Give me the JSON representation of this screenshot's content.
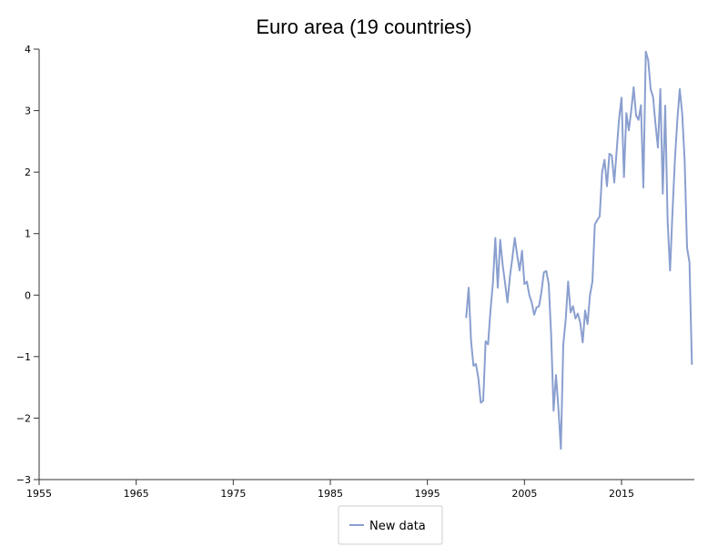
{
  "chart_data": {
    "type": "line",
    "title": "Euro area (19 countries)",
    "xlabel": "",
    "ylabel": "",
    "xlim": [
      1955,
      2022.5
    ],
    "ylim": [
      -3,
      4
    ],
    "x_ticks": [
      1955,
      1965,
      1975,
      1985,
      1995,
      2005,
      2015
    ],
    "y_ticks": [
      -3,
      -2,
      -1,
      0,
      1,
      2,
      3,
      4
    ],
    "grid": false,
    "legend": "bottom-center",
    "series": [
      {
        "name": "New data",
        "color": "#8a9fcf",
        "points": [
          [
            1999.0,
            -0.36
          ],
          [
            1999.25,
            0.12
          ],
          [
            1999.5,
            -0.75
          ],
          [
            1999.75,
            -1.15
          ],
          [
            2000.0,
            -1.12
          ],
          [
            2000.25,
            -1.35
          ],
          [
            2000.5,
            -1.75
          ],
          [
            2000.75,
            -1.72
          ],
          [
            2001.0,
            -0.75
          ],
          [
            2001.25,
            -0.8
          ],
          [
            2001.5,
            -0.25
          ],
          [
            2001.75,
            0.2
          ],
          [
            2002.0,
            0.93
          ],
          [
            2002.25,
            0.12
          ],
          [
            2002.5,
            0.9
          ],
          [
            2002.75,
            0.5
          ],
          [
            2003.0,
            0.2
          ],
          [
            2003.25,
            -0.12
          ],
          [
            2003.5,
            0.3
          ],
          [
            2003.75,
            0.6
          ],
          [
            2004.0,
            0.93
          ],
          [
            2004.25,
            0.65
          ],
          [
            2004.5,
            0.4
          ],
          [
            2004.75,
            0.72
          ],
          [
            2005.0,
            0.18
          ],
          [
            2005.25,
            0.22
          ],
          [
            2005.5,
            0.0
          ],
          [
            2005.75,
            -0.12
          ],
          [
            2006.0,
            -0.32
          ],
          [
            2006.25,
            -0.2
          ],
          [
            2006.5,
            -0.18
          ],
          [
            2006.75,
            0.05
          ],
          [
            2007.0,
            0.37
          ],
          [
            2007.25,
            0.39
          ],
          [
            2007.5,
            0.18
          ],
          [
            2007.75,
            -0.65
          ],
          [
            2008.0,
            -1.88
          ],
          [
            2008.25,
            -1.3
          ],
          [
            2008.5,
            -1.85
          ],
          [
            2008.75,
            -2.5
          ],
          [
            2009.0,
            -0.8
          ],
          [
            2009.25,
            -0.4
          ],
          [
            2009.5,
            0.22
          ],
          [
            2009.75,
            -0.28
          ],
          [
            2010.0,
            -0.18
          ],
          [
            2010.25,
            -0.38
          ],
          [
            2010.5,
            -0.3
          ],
          [
            2010.75,
            -0.45
          ],
          [
            2011.0,
            -0.77
          ],
          [
            2011.25,
            -0.25
          ],
          [
            2011.5,
            -0.47
          ],
          [
            2011.75,
            0.0
          ],
          [
            2012.0,
            0.22
          ],
          [
            2012.25,
            1.15
          ],
          [
            2012.5,
            1.22
          ],
          [
            2012.75,
            1.28
          ],
          [
            2013.0,
            2.0
          ],
          [
            2013.25,
            2.2
          ],
          [
            2013.5,
            1.77
          ],
          [
            2013.75,
            2.3
          ],
          [
            2014.0,
            2.27
          ],
          [
            2014.25,
            1.83
          ],
          [
            2014.5,
            2.35
          ],
          [
            2014.75,
            2.87
          ],
          [
            2015.0,
            3.21
          ],
          [
            2015.25,
            1.92
          ],
          [
            2015.5,
            2.96
          ],
          [
            2015.75,
            2.68
          ],
          [
            2016.0,
            3.0
          ],
          [
            2016.25,
            3.38
          ],
          [
            2016.5,
            2.92
          ],
          [
            2016.75,
            2.85
          ],
          [
            2017.0,
            3.09
          ],
          [
            2017.25,
            1.75
          ],
          [
            2017.5,
            3.96
          ],
          [
            2017.75,
            3.82
          ],
          [
            2018.0,
            3.35
          ],
          [
            2018.25,
            3.22
          ],
          [
            2018.5,
            2.78
          ],
          [
            2018.75,
            2.4
          ],
          [
            2019.0,
            3.35
          ],
          [
            2019.25,
            1.65
          ],
          [
            2019.5,
            3.08
          ],
          [
            2019.75,
            1.2
          ],
          [
            2020.0,
            0.4
          ],
          [
            2020.25,
            1.35
          ],
          [
            2020.5,
            2.2
          ],
          [
            2020.75,
            2.85
          ],
          [
            2021.0,
            3.35
          ],
          [
            2021.25,
            2.95
          ],
          [
            2021.5,
            2.2
          ],
          [
            2021.75,
            0.77
          ],
          [
            2022.0,
            0.53
          ],
          [
            2022.25,
            -1.12
          ]
        ]
      }
    ]
  }
}
